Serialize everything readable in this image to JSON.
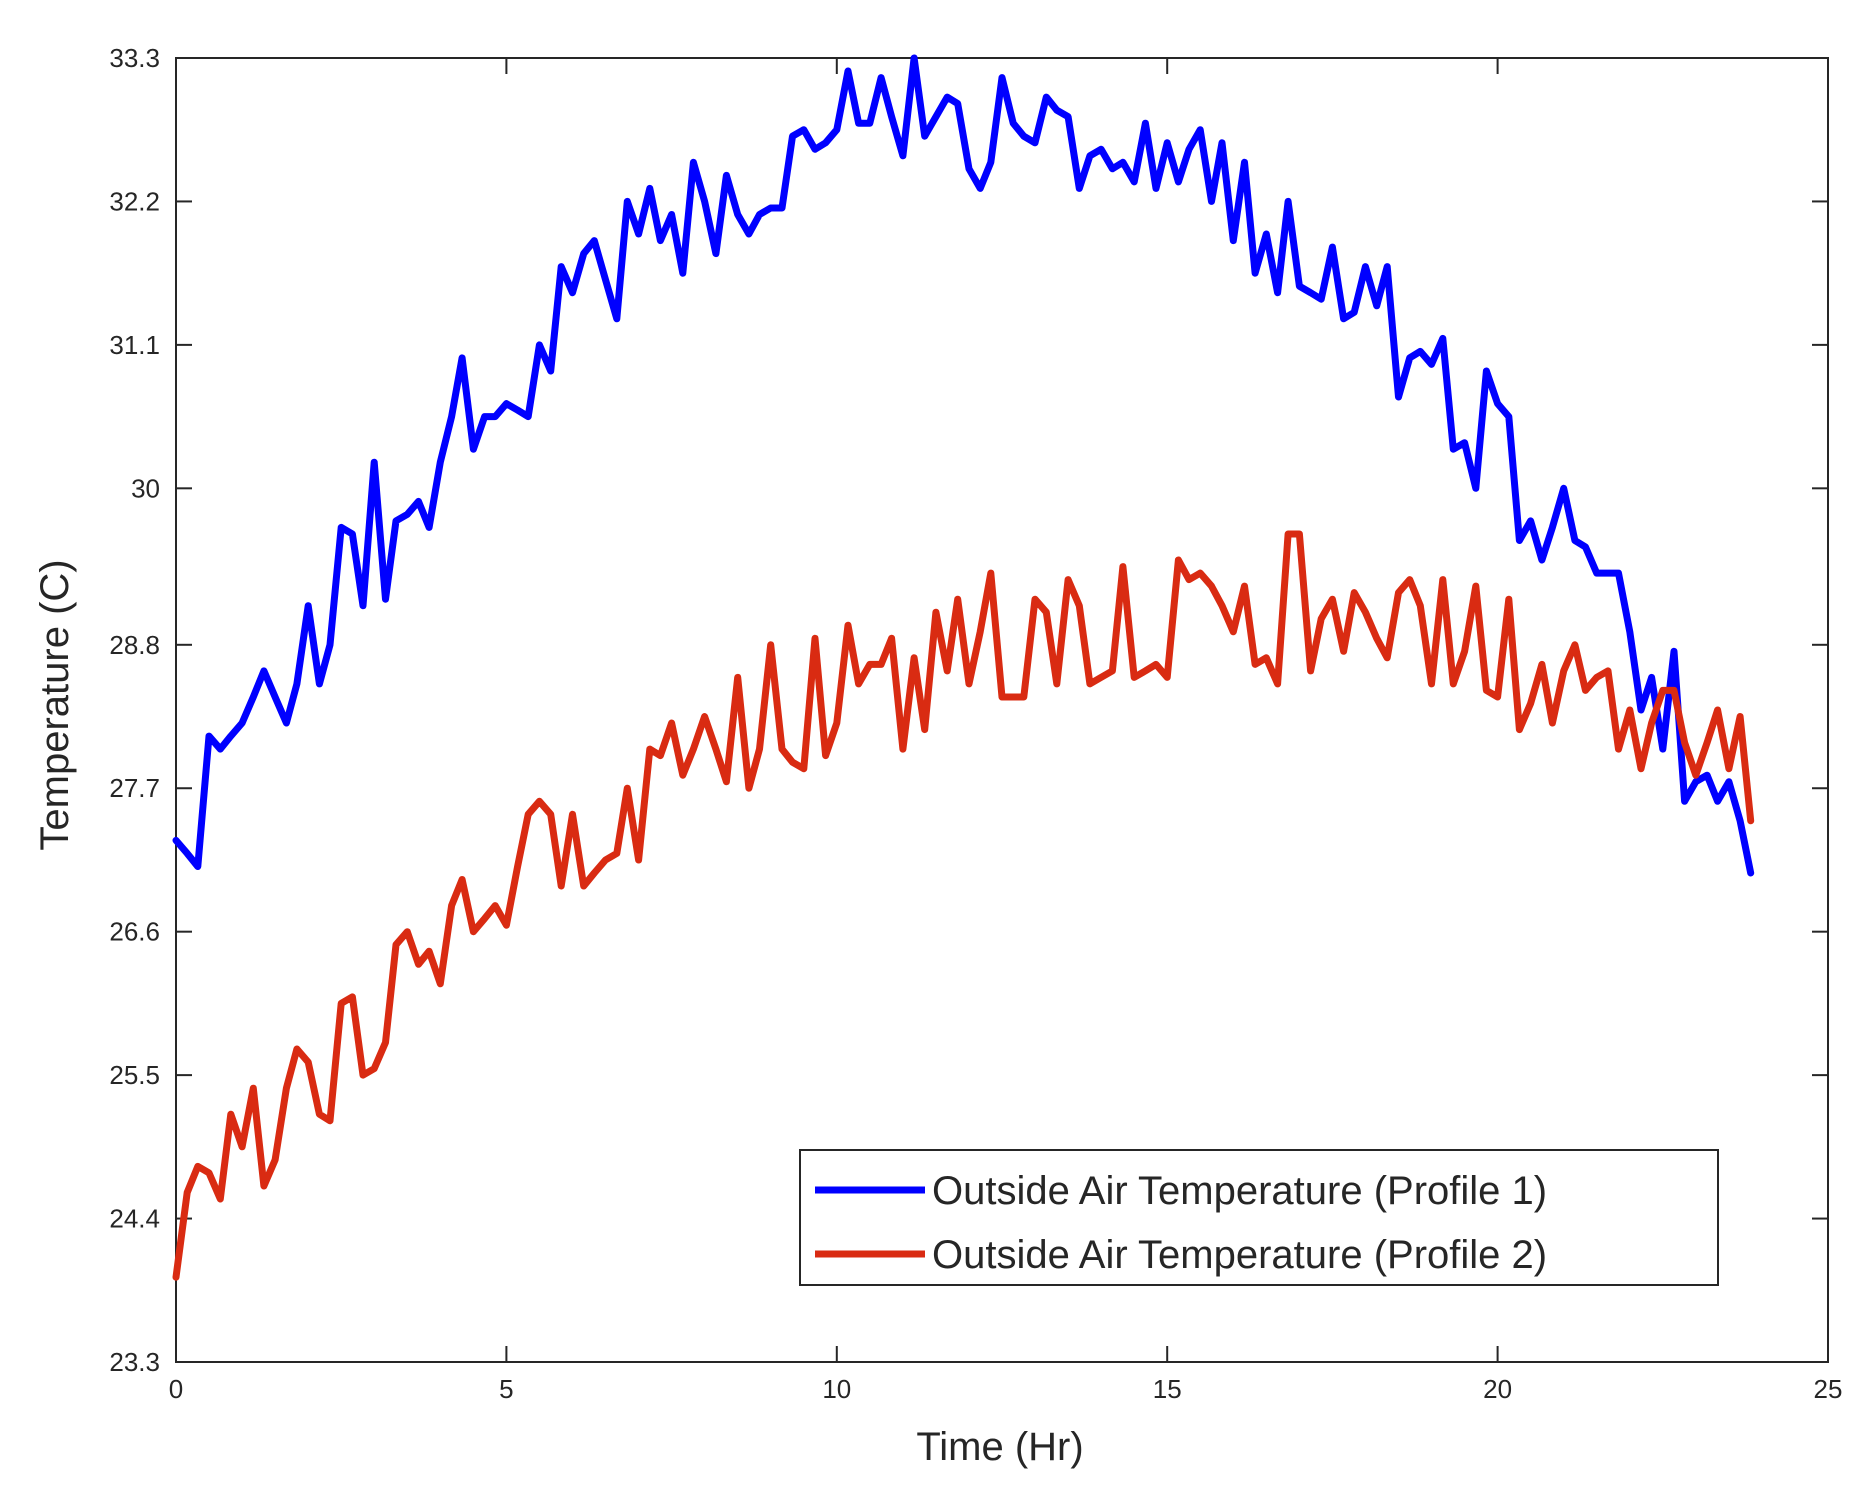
{
  "chart_data": {
    "type": "line",
    "title": "",
    "xlabel": "Time (Hr)",
    "ylabel": "Temperature (C)",
    "xlim": [
      0,
      25
    ],
    "ylim": [
      23.3,
      33.3
    ],
    "xticks": [
      0,
      5,
      10,
      15,
      20,
      25
    ],
    "yticks": [
      23.3,
      24.4,
      25.5,
      26.6,
      27.7,
      28.8,
      30,
      31.1,
      32.2,
      33.3
    ],
    "ytick_labels": [
      "23.3",
      "24.4",
      "25.5",
      "26.6",
      "27.7",
      "28.8",
      "30",
      "31.1",
      "32.2",
      "33.3"
    ],
    "grid": false,
    "legend_position": "bottom-right",
    "series": [
      {
        "name": "Outside Air Temperature (Profile 1)",
        "color": "#0000ff",
        "x": [
          0,
          0.17,
          0.33,
          0.5,
          0.67,
          0.83,
          1.0,
          1.17,
          1.33,
          1.5,
          1.67,
          1.83,
          2.0,
          2.17,
          2.33,
          2.5,
          2.67,
          2.83,
          3.0,
          3.17,
          3.33,
          3.5,
          3.67,
          3.83,
          4.0,
          4.17,
          4.33,
          4.5,
          4.67,
          4.83,
          5.0,
          5.17,
          5.33,
          5.5,
          5.67,
          5.83,
          6.0,
          6.17,
          6.33,
          6.5,
          6.67,
          6.83,
          7.0,
          7.17,
          7.33,
          7.5,
          7.67,
          7.83,
          8.0,
          8.17,
          8.33,
          8.5,
          8.67,
          8.83,
          9.0,
          9.17,
          9.33,
          9.5,
          9.67,
          9.83,
          10.0,
          10.17,
          10.33,
          10.5,
          10.67,
          10.83,
          11.0,
          11.17,
          11.33,
          11.5,
          11.67,
          11.83,
          12.0,
          12.17,
          12.33,
          12.5,
          12.67,
          12.83,
          13.0,
          13.17,
          13.33,
          13.5,
          13.67,
          13.83,
          14.0,
          14.17,
          14.33,
          14.5,
          14.67,
          14.83,
          15.0,
          15.17,
          15.33,
          15.5,
          15.67,
          15.83,
          16.0,
          16.17,
          16.33,
          16.5,
          16.67,
          16.83,
          17.0,
          17.17,
          17.33,
          17.5,
          17.67,
          17.83,
          18.0,
          18.17,
          18.33,
          18.5,
          18.67,
          18.83,
          19.0,
          19.17,
          19.33,
          19.5,
          19.67,
          19.83,
          20.0,
          20.17,
          20.33,
          20.5,
          20.67,
          20.83,
          21.0,
          21.17,
          21.33,
          21.5,
          21.67,
          21.83,
          22.0,
          22.17,
          22.33,
          22.5,
          22.67,
          22.83,
          23.0,
          23.17,
          23.33,
          23.5,
          23.67,
          23.83
        ],
        "values": [
          27.3,
          27.2,
          27.1,
          28.1,
          28.0,
          28.1,
          28.2,
          28.4,
          28.6,
          28.4,
          28.2,
          28.5,
          29.1,
          28.5,
          28.8,
          29.7,
          29.65,
          29.1,
          30.2,
          29.15,
          29.75,
          29.8,
          29.9,
          29.7,
          30.2,
          30.55,
          31.0,
          30.3,
          30.55,
          30.55,
          30.65,
          30.6,
          30.55,
          31.1,
          30.9,
          31.7,
          31.5,
          31.8,
          31.9,
          31.6,
          31.3,
          32.2,
          31.95,
          32.3,
          31.9,
          32.1,
          31.65,
          32.5,
          32.2,
          31.8,
          32.4,
          32.1,
          31.95,
          32.1,
          32.15,
          32.15,
          32.7,
          32.75,
          32.6,
          32.65,
          32.75,
          33.2,
          32.8,
          32.8,
          33.15,
          32.85,
          32.55,
          33.3,
          32.7,
          32.85,
          33.0,
          32.95,
          32.45,
          32.3,
          32.5,
          33.15,
          32.8,
          32.7,
          32.65,
          33.0,
          32.9,
          32.85,
          32.3,
          32.55,
          32.6,
          32.45,
          32.5,
          32.35,
          32.8,
          32.3,
          32.65,
          32.35,
          32.6,
          32.75,
          32.2,
          32.65,
          31.9,
          32.5,
          31.65,
          31.95,
          31.5,
          32.2,
          31.55,
          31.5,
          31.45,
          31.85,
          31.3,
          31.35,
          31.7,
          31.4,
          31.7,
          30.7,
          31.0,
          31.05,
          30.95,
          31.15,
          30.3,
          30.35,
          30.0,
          30.9,
          30.65,
          30.55,
          29.6,
          29.75,
          29.45,
          29.7,
          30.0,
          29.6,
          29.55,
          29.35,
          29.35,
          29.35,
          28.9,
          28.3,
          28.55,
          28.0,
          28.75,
          27.6,
          27.75,
          27.8,
          27.6,
          27.75,
          27.45,
          27.05
        ]
      },
      {
        "name": "Outside Air Temperature (Profile 2)",
        "color": "#d92b12",
        "x": [
          0,
          0.17,
          0.33,
          0.5,
          0.67,
          0.83,
          1.0,
          1.17,
          1.33,
          1.5,
          1.67,
          1.83,
          2.0,
          2.17,
          2.33,
          2.5,
          2.67,
          2.83,
          3.0,
          3.17,
          3.33,
          3.5,
          3.67,
          3.83,
          4.0,
          4.17,
          4.33,
          4.5,
          4.67,
          4.83,
          5.0,
          5.17,
          5.33,
          5.5,
          5.67,
          5.83,
          6.0,
          6.17,
          6.33,
          6.5,
          6.67,
          6.83,
          7.0,
          7.17,
          7.33,
          7.5,
          7.67,
          7.83,
          8.0,
          8.17,
          8.33,
          8.5,
          8.67,
          8.83,
          9.0,
          9.17,
          9.33,
          9.5,
          9.67,
          9.83,
          10.0,
          10.17,
          10.33,
          10.5,
          10.67,
          10.83,
          11.0,
          11.17,
          11.33,
          11.5,
          11.67,
          11.83,
          12.0,
          12.17,
          12.33,
          12.5,
          12.67,
          12.83,
          13.0,
          13.17,
          13.33,
          13.5,
          13.67,
          13.83,
          14.0,
          14.17,
          14.33,
          14.5,
          14.67,
          14.83,
          15.0,
          15.17,
          15.33,
          15.5,
          15.67,
          15.83,
          16.0,
          16.17,
          16.33,
          16.5,
          16.67,
          16.83,
          17.0,
          17.17,
          17.33,
          17.5,
          17.67,
          17.83,
          18.0,
          18.17,
          18.33,
          18.5,
          18.67,
          18.83,
          19.0,
          19.17,
          19.33,
          19.5,
          19.67,
          19.83,
          20.0,
          20.17,
          20.33,
          20.5,
          20.67,
          20.83,
          21.0,
          21.17,
          21.33,
          21.5,
          21.67,
          21.83,
          22.0,
          22.17,
          22.33,
          22.5,
          22.67,
          22.83,
          23.0,
          23.17,
          23.33,
          23.5,
          23.67,
          23.83
        ],
        "values": [
          23.95,
          24.6,
          24.8,
          24.75,
          24.55,
          25.2,
          24.95,
          25.4,
          24.65,
          24.85,
          25.4,
          25.7,
          25.6,
          25.2,
          25.15,
          26.05,
          26.1,
          25.5,
          25.55,
          25.75,
          26.5,
          26.6,
          26.35,
          26.45,
          26.2,
          26.8,
          27.0,
          26.6,
          26.7,
          26.8,
          26.65,
          27.1,
          27.5,
          27.6,
          27.5,
          26.95,
          27.5,
          26.95,
          27.05,
          27.15,
          27.2,
          27.7,
          27.15,
          28.0,
          27.95,
          28.2,
          27.8,
          28.0,
          28.25,
          28.0,
          27.75,
          28.55,
          27.7,
          28.0,
          28.8,
          28.0,
          27.9,
          27.85,
          28.85,
          27.95,
          28.2,
          28.95,
          28.5,
          28.65,
          28.65,
          28.85,
          28.0,
          28.7,
          28.15,
          29.05,
          28.6,
          29.15,
          28.5,
          28.9,
          29.35,
          28.4,
          28.4,
          28.4,
          29.15,
          29.05,
          28.5,
          29.3,
          29.1,
          28.5,
          28.55,
          28.6,
          29.4,
          28.55,
          28.6,
          28.65,
          28.55,
          29.45,
          29.3,
          29.35,
          29.25,
          29.1,
          28.9,
          29.25,
          28.65,
          28.7,
          28.5,
          29.65,
          29.65,
          28.6,
          29.0,
          29.15,
          28.75,
          29.2,
          29.05,
          28.85,
          28.7,
          29.2,
          29.3,
          29.1,
          28.5,
          29.3,
          28.5,
          28.75,
          29.25,
          28.45,
          28.4,
          29.15,
          28.15,
          28.35,
          28.65,
          28.2,
          28.6,
          28.8,
          28.45,
          28.55,
          28.6,
          28.0,
          28.3,
          27.85,
          28.2,
          28.45,
          28.45,
          28.05,
          27.8,
          28.05,
          28.3,
          27.85,
          28.25,
          27.45
        ]
      }
    ]
  }
}
